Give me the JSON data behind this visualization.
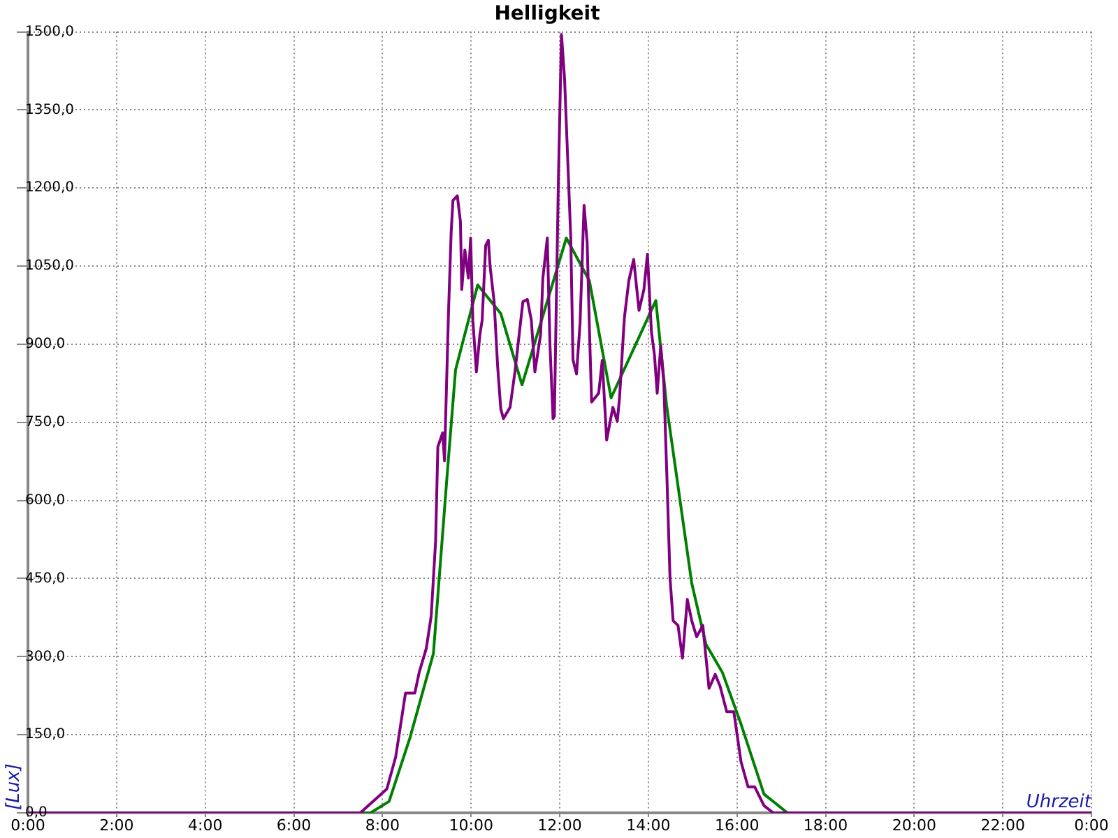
{
  "chart_data": {
    "type": "line",
    "title": "Helligkeit",
    "xlabel": "Uhrzeit",
    "ylabel": "[Lux]",
    "xlim": [
      0,
      24
    ],
    "ylim": [
      0,
      1500
    ],
    "xticks": [
      {
        "value": 0,
        "label": "0:00"
      },
      {
        "value": 2,
        "label": "2:00"
      },
      {
        "value": 4,
        "label": "4:00"
      },
      {
        "value": 6,
        "label": "6:00"
      },
      {
        "value": 8,
        "label": "8:00"
      },
      {
        "value": 10,
        "label": "10:00"
      },
      {
        "value": 12,
        "label": "12:00"
      },
      {
        "value": 14,
        "label": "14:00"
      },
      {
        "value": 16,
        "label": "16:00"
      },
      {
        "value": 18,
        "label": "18:00"
      },
      {
        "value": 20,
        "label": "20:00"
      },
      {
        "value": 22,
        "label": "22:00"
      },
      {
        "value": 24,
        "label": "0:00"
      }
    ],
    "yticks": [
      {
        "value": 0,
        "label": "0,0"
      },
      {
        "value": 150,
        "label": "150,0"
      },
      {
        "value": 300,
        "label": "300,0"
      },
      {
        "value": 450,
        "label": "450,0"
      },
      {
        "value": 600,
        "label": "600,0"
      },
      {
        "value": 750,
        "label": "750,0"
      },
      {
        "value": 900,
        "label": "900,0"
      },
      {
        "value": 1050,
        "label": "1050,0"
      },
      {
        "value": 1200,
        "label": "1200,0"
      },
      {
        "value": 1350,
        "label": "1350,0"
      },
      {
        "value": 1500,
        "label": "1500,0"
      }
    ],
    "grid": true,
    "legend": false,
    "marker": "none",
    "line_style": "solid",
    "series": [
      {
        "color": "#800080",
        "x": [
          0,
          7.5,
          8.1,
          8.3,
          8.52,
          8.73,
          8.83,
          8.99,
          9.1,
          9.2,
          9.25,
          9.36,
          9.4,
          9.49,
          9.55,
          9.59,
          9.69,
          9.76,
          9.79,
          9.86,
          9.94,
          9.99,
          10.04,
          10.12,
          10.2,
          10.25,
          10.33,
          10.39,
          10.43,
          10.52,
          10.6,
          10.67,
          10.73,
          10.88,
          10.99,
          11.17,
          11.27,
          11.36,
          11.44,
          11.57,
          11.62,
          11.72,
          11.78,
          11.85,
          11.88,
          11.97,
          12.04,
          12.11,
          12.18,
          12.25,
          12.3,
          12.38,
          12.46,
          12.55,
          12.62,
          12.67,
          12.72,
          12.88,
          12.96,
          13.06,
          13.2,
          13.3,
          13.35,
          13.46,
          13.56,
          13.67,
          13.79,
          13.9,
          13.98,
          14.07,
          14.14,
          14.2,
          14.28,
          14.35,
          14.42,
          14.49,
          14.56,
          14.67,
          14.77,
          14.88,
          14.98,
          15.09,
          15.23,
          15.37,
          15.51,
          15.62,
          15.77,
          15.93,
          16.09,
          16.25,
          16.4,
          16.61,
          16.82,
          24
        ],
        "values": [
          0,
          0,
          46,
          108,
          230,
          230,
          270,
          316,
          378,
          522,
          703,
          730,
          676,
          959,
          1113,
          1176,
          1185,
          1135,
          1005,
          1081,
          1027,
          1104,
          946,
          847,
          919,
          946,
          1090,
          1100,
          1049,
          982,
          857,
          776,
          757,
          779,
          847,
          982,
          986,
          946,
          847,
          919,
          1027,
          1104,
          900,
          757,
          762,
          1212,
          1495,
          1410,
          1257,
          1104,
          870,
          843,
          941,
          1167,
          1095,
          932,
          789,
          806,
          869,
          716,
          779,
          752,
          797,
          951,
          1022,
          1063,
          965,
          1005,
          1073,
          924,
          878,
          806,
          897,
          824,
          644,
          450,
          369,
          360,
          297,
          410,
          369,
          338,
          360,
          239,
          266,
          243,
          194,
          194,
          99,
          50,
          50,
          14,
          0,
          0
        ]
      },
      {
        "color": "#008000",
        "x": [
          0,
          7.73,
          8.15,
          8.62,
          9.15,
          9.46,
          9.65,
          10.15,
          10.67,
          11.15,
          12.15,
          12.67,
          13.16,
          14.17,
          14.41,
          14.98,
          15.3,
          15.67,
          16.09,
          16.61,
          17.14,
          24
        ],
        "values": [
          0,
          0,
          22,
          144,
          306,
          649,
          851,
          1014,
          959,
          822,
          1104,
          1022,
          797,
          984,
          784,
          441,
          324,
          270,
          171,
          36,
          0,
          0
        ]
      }
    ]
  }
}
